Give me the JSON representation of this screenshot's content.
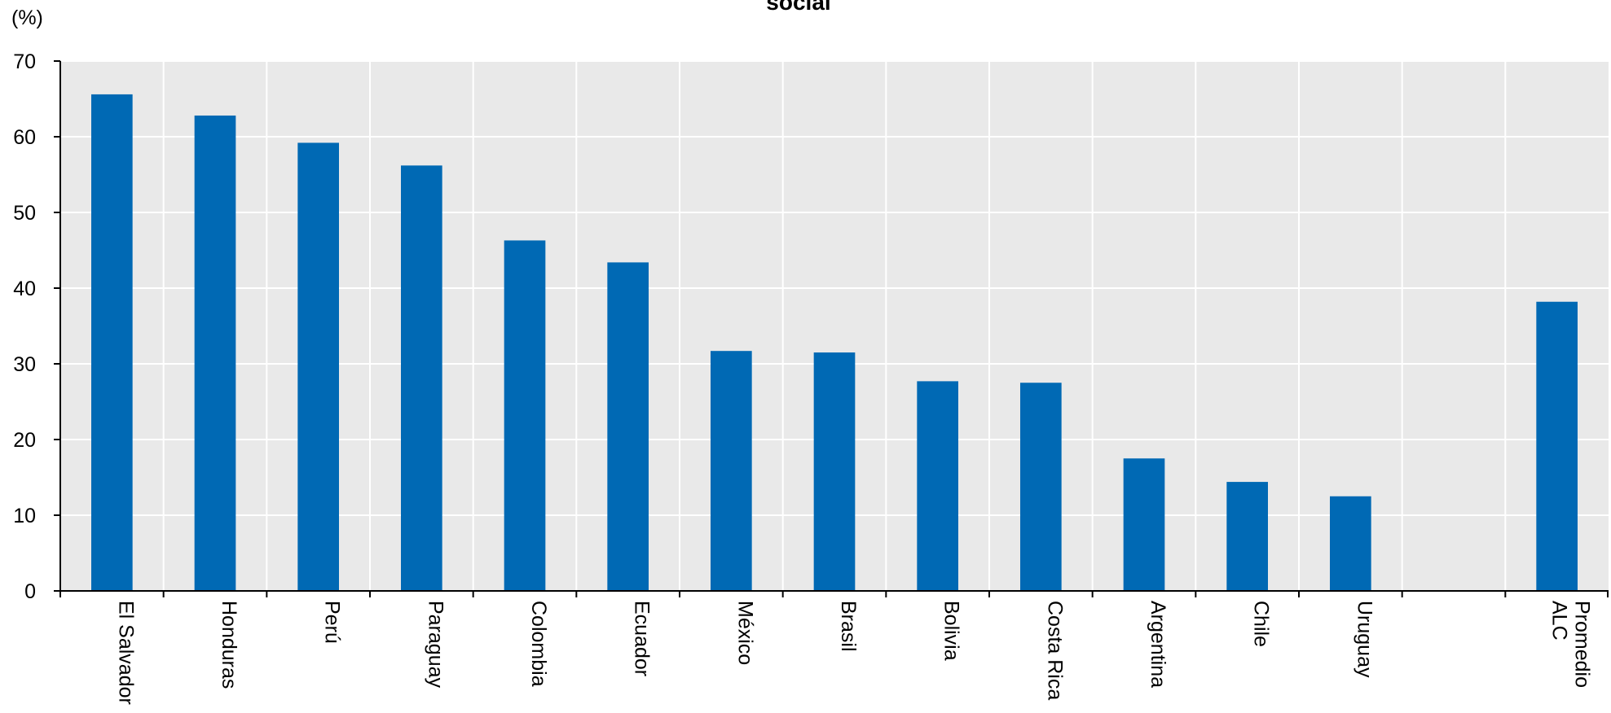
{
  "chart_data": {
    "type": "bar",
    "title": "social",
    "ylabel": "(%)",
    "xlabel": "",
    "ylim": [
      0,
      70
    ],
    "yticks": [
      0,
      10,
      20,
      30,
      40,
      50,
      60,
      70
    ],
    "grid": true,
    "categories": [
      [
        "El Salvador"
      ],
      [
        "Honduras"
      ],
      [
        "Perú"
      ],
      [
        "Paraguay"
      ],
      [
        "Colombia"
      ],
      [
        "Ecuador"
      ],
      [
        "México"
      ],
      [
        "Brasil"
      ],
      [
        "Bolivia"
      ],
      [
        "Costa Rica"
      ],
      [
        "Argentina"
      ],
      [
        "Chile"
      ],
      [
        "Uruguay"
      ],
      [],
      [
        "Promedio",
        "ALC"
      ]
    ],
    "values": [
      65.6,
      62.8,
      59.2,
      56.2,
      46.3,
      43.4,
      31.7,
      31.5,
      27.7,
      27.5,
      17.5,
      14.4,
      12.5,
      null,
      38.2
    ],
    "colors": {
      "bar": "#0069b4",
      "plot_background": "#e9e9e9",
      "grid": "#ffffff",
      "axis": "#000000"
    }
  }
}
